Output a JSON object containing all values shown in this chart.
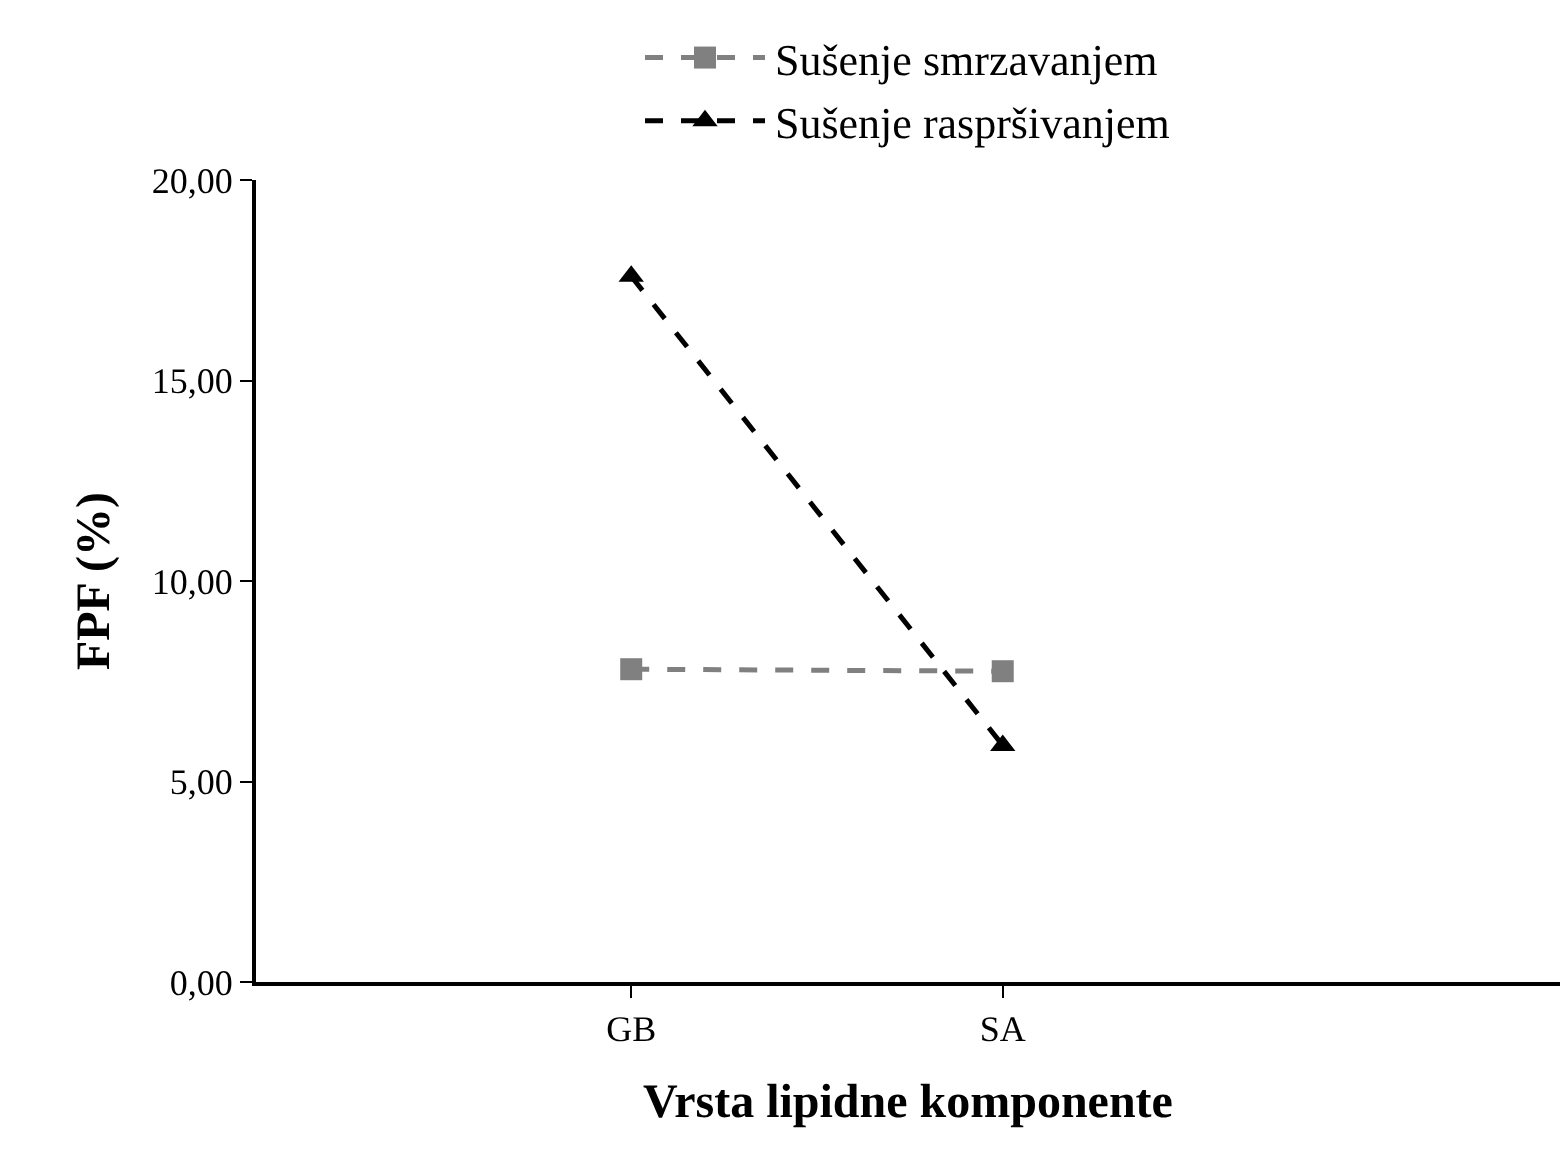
{
  "chart_data": {
    "type": "line",
    "xlabel": "Vrsta lipidne komponente",
    "ylabel": "FPF (%)",
    "categories": [
      "GB",
      "SA"
    ],
    "series": [
      {
        "name": "Sušenje smrzavanjem",
        "color": "#808080",
        "values": [
          7.8,
          7.75
        ],
        "marker": "square"
      },
      {
        "name": "Sušenje raspršivanjem",
        "color": "#000000",
        "values": [
          17.6,
          5.9
        ],
        "marker": "triangle"
      }
    ],
    "ylim": [
      0,
      20
    ],
    "yticks": [
      {
        "value": 0,
        "label": "0,00"
      },
      {
        "value": 5,
        "label": "5,00"
      },
      {
        "value": 10,
        "label": "10,00"
      },
      {
        "value": 15,
        "label": "15,00"
      },
      {
        "value": 20,
        "label": "20,00"
      }
    ],
    "grid": false,
    "legend": "top",
    "line_style": "dashed"
  }
}
